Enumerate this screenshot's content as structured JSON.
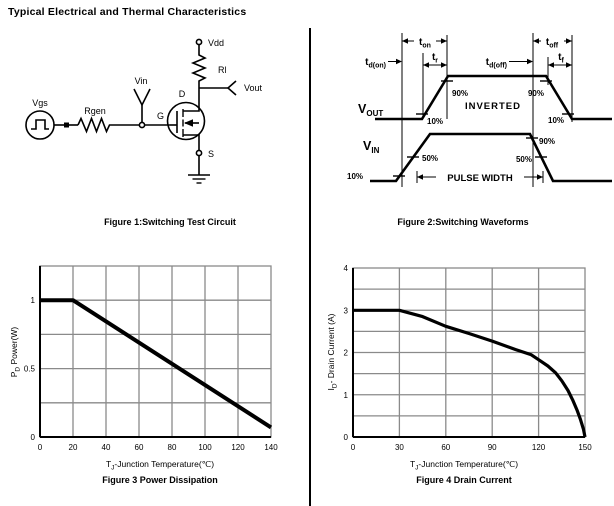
{
  "title": "Typical Electrical and Thermal Characteristics",
  "figure1": {
    "caption": "Figure 1:Switching Test Circuit",
    "labels": {
      "vgs": "Vgs",
      "rgen": "Rgen",
      "vin": "Vin",
      "g": "G",
      "d": "D",
      "s": "S",
      "vdd": "Vdd",
      "rl": "Rl",
      "vout": "Vout"
    }
  },
  "figure2": {
    "caption": "Figure 2:Switching Waveforms",
    "labels": {
      "td_on_main": "t",
      "td_on_sub": "d(on)",
      "ton_main": "t",
      "ton_sub": "on",
      "tr_main": "t",
      "tr_sub": "r",
      "td_off_main": "t",
      "td_off_sub": "d(off)",
      "toff_main": "t",
      "toff_sub": "off",
      "tf_main": "t",
      "tf_sub": "f",
      "vout_main": "V",
      "vout_sub": "OUT",
      "vin_main": "V",
      "vin_sub": "IN",
      "inverted": "INVERTED",
      "pulse_width": "PULSE WIDTH",
      "p90": "90%",
      "p10": "10%",
      "p50": "50%"
    }
  },
  "figure3": {
    "caption": "Figure 3 Power Dissipation",
    "xlabel": {
      "main": "T",
      "sub": "J",
      "rest": "-Junction Temperature(℃)"
    },
    "ylabel": {
      "main": "P",
      "sub": "D",
      "rest": "  Power(W)"
    }
  },
  "figure4": {
    "caption": "Figure 4 Drain Current",
    "xlabel": {
      "main": "T",
      "sub": "J",
      "rest": "-Junction Temperature(℃)"
    },
    "ylabel": {
      "main": "I",
      "sub": "D",
      "rest": "- Drain Current (A)"
    }
  },
  "chart_data": [
    {
      "id": "fig3",
      "type": "line",
      "title": "Figure 3 Power Dissipation",
      "xlabel": "TJ-Junction Temperature(℃)",
      "ylabel": "PD Power(W)",
      "xlim": [
        0,
        140
      ],
      "ylim": [
        0,
        1.25
      ],
      "x_ticks": [
        0,
        20,
        40,
        60,
        80,
        100,
        120,
        140
      ],
      "y_ticks": [
        0,
        0.5,
        1
      ],
      "x_grid_step": 20,
      "y_grid_step": 0.25,
      "grid": true,
      "legend": false,
      "points": [
        [
          0,
          1.0
        ],
        [
          20,
          1.0
        ],
        [
          140,
          0.07
        ]
      ]
    },
    {
      "id": "fig4",
      "type": "line",
      "title": "Figure 4 Drain Current",
      "xlabel": "TJ-Junction Temperature(℃)",
      "ylabel": "ID- Drain Current (A)",
      "xlim": [
        0,
        150
      ],
      "ylim": [
        0,
        4
      ],
      "x_ticks": [
        0,
        30,
        60,
        90,
        120,
        150
      ],
      "y_ticks": [
        0,
        1,
        2,
        3,
        4
      ],
      "x_grid_step": 30,
      "y_grid_step": 0.5,
      "grid": true,
      "legend": false,
      "points": [
        [
          0,
          3
        ],
        [
          30,
          3
        ],
        [
          45,
          2.85
        ],
        [
          60,
          2.62
        ],
        [
          75,
          2.45
        ],
        [
          90,
          2.27
        ],
        [
          105,
          2.07
        ],
        [
          115,
          1.95
        ],
        [
          120,
          1.83
        ],
        [
          126,
          1.68
        ],
        [
          131,
          1.52
        ],
        [
          135,
          1.33
        ],
        [
          139,
          1.1
        ],
        [
          142,
          0.88
        ],
        [
          145,
          0.62
        ],
        [
          147,
          0.42
        ],
        [
          149,
          0.18
        ],
        [
          150,
          0
        ]
      ]
    }
  ]
}
